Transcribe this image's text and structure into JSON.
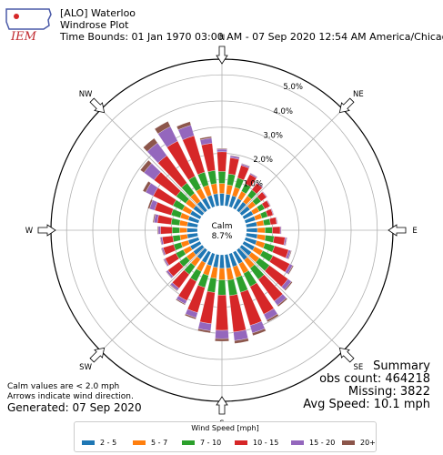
{
  "header": {
    "station": "[ALO] Waterloo",
    "plot_type": "Windrose Plot",
    "time_bounds": "Time Bounds: 01 Jan 1970 03:00 AM - 07 Sep 2020 12:54 AM America/Chicago"
  },
  "logo": {
    "text": "IEM",
    "icon": "iowa-state-outline-logo"
  },
  "summary": {
    "title": "Summary",
    "obs_count": "obs count: 464218",
    "missing": "Missing: 3822",
    "avg_speed": "Avg Speed: 10.1 mph"
  },
  "notes": {
    "calm_threshold": "Calm values are < 2.0 mph",
    "arrows": "Arrows indicate wind direction.",
    "generated": "Generated: 07 Sep 2020"
  },
  "legend": {
    "title": "Wind Speed [mph]"
  },
  "chart_data": {
    "type": "windrose",
    "calm_label": "Calm",
    "calm_value": "8.7%",
    "directions": [
      "N",
      "NE",
      "E",
      "SE",
      "S",
      "SW",
      "W",
      "NW"
    ],
    "radial_ticks": [
      "1.0%",
      "2.0%",
      "3.0%",
      "4.0%",
      "5.0%"
    ],
    "radial_values": [
      1,
      2,
      3,
      4,
      5
    ],
    "rmax": 5.6,
    "sector_angles_deg": [
      0,
      10,
      20,
      30,
      40,
      50,
      60,
      70,
      80,
      90,
      100,
      110,
      120,
      130,
      140,
      150,
      160,
      170,
      180,
      190,
      200,
      210,
      220,
      230,
      240,
      250,
      260,
      270,
      280,
      290,
      300,
      310,
      320,
      330,
      340,
      350
    ],
    "series": [
      {
        "name": "2 - 5",
        "color": "#1f77b4",
        "values": [
          0.47,
          0.45,
          0.44,
          0.42,
          0.41,
          0.4,
          0.4,
          0.4,
          0.41,
          0.42,
          0.43,
          0.45,
          0.46,
          0.47,
          0.48,
          0.5,
          0.52,
          0.53,
          0.52,
          0.5,
          0.48,
          0.46,
          0.44,
          0.43,
          0.42,
          0.41,
          0.4,
          0.4,
          0.4,
          0.41,
          0.42,
          0.43,
          0.44,
          0.45,
          0.46,
          0.47
        ]
      },
      {
        "name": "5 - 7",
        "color": "#ff7f0e",
        "values": [
          0.38,
          0.36,
          0.34,
          0.31,
          0.29,
          0.27,
          0.26,
          0.26,
          0.27,
          0.29,
          0.31,
          0.33,
          0.35,
          0.37,
          0.39,
          0.41,
          0.43,
          0.45,
          0.44,
          0.42,
          0.39,
          0.37,
          0.34,
          0.32,
          0.3,
          0.29,
          0.28,
          0.28,
          0.3,
          0.32,
          0.34,
          0.36,
          0.38,
          0.4,
          0.4,
          0.39
        ]
      },
      {
        "name": "7 - 10",
        "color": "#2ca02c",
        "values": [
          0.46,
          0.42,
          0.37,
          0.32,
          0.28,
          0.25,
          0.23,
          0.23,
          0.25,
          0.28,
          0.33,
          0.38,
          0.43,
          0.48,
          0.53,
          0.56,
          0.59,
          0.6,
          0.58,
          0.54,
          0.48,
          0.42,
          0.38,
          0.34,
          0.31,
          0.29,
          0.28,
          0.29,
          0.32,
          0.36,
          0.4,
          0.45,
          0.49,
          0.52,
          0.52,
          0.5
        ]
      },
      {
        "name": "10 - 15",
        "color": "#d62728",
        "values": [
          0.75,
          0.62,
          0.5,
          0.4,
          0.32,
          0.26,
          0.22,
          0.21,
          0.24,
          0.3,
          0.42,
          0.56,
          0.72,
          0.88,
          1.03,
          1.18,
          1.32,
          1.4,
          1.35,
          1.2,
          1.0,
          0.82,
          0.66,
          0.54,
          0.46,
          0.42,
          0.4,
          0.44,
          0.53,
          0.66,
          0.84,
          1.05,
          1.3,
          1.5,
          1.45,
          1.05
        ]
      },
      {
        "name": "15 - 20",
        "color": "#9467bd",
        "values": [
          0.1,
          0.08,
          0.06,
          0.05,
          0.04,
          0.03,
          0.03,
          0.03,
          0.03,
          0.04,
          0.06,
          0.09,
          0.12,
          0.16,
          0.2,
          0.25,
          0.3,
          0.33,
          0.32,
          0.27,
          0.2,
          0.14,
          0.1,
          0.08,
          0.06,
          0.06,
          0.07,
          0.09,
          0.13,
          0.2,
          0.32,
          0.48,
          0.6,
          0.62,
          0.42,
          0.2
        ]
      },
      {
        "name": "20+",
        "color": "#8c564b",
        "values": [
          0.03,
          0.02,
          0.02,
          0.01,
          0.01,
          0.01,
          0.01,
          0.01,
          0.01,
          0.01,
          0.02,
          0.03,
          0.04,
          0.05,
          0.06,
          0.08,
          0.1,
          0.11,
          0.1,
          0.08,
          0.06,
          0.04,
          0.03,
          0.02,
          0.02,
          0.02,
          0.02,
          0.03,
          0.04,
          0.07,
          0.12,
          0.17,
          0.22,
          0.22,
          0.14,
          0.06
        ]
      }
    ]
  }
}
